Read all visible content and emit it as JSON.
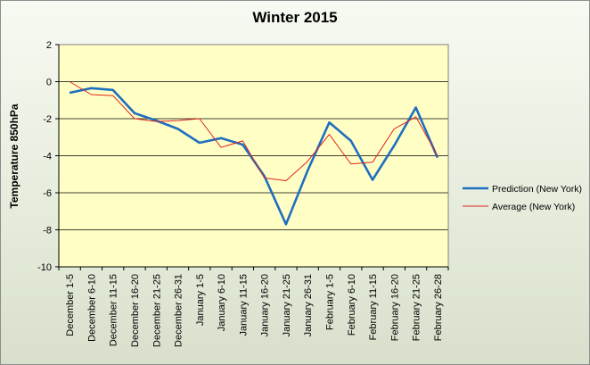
{
  "chart_data": {
    "type": "line",
    "title": "Winter 2015",
    "ylabel": "Temperature 850hPa",
    "xlabel": "",
    "ylim": [
      -10,
      2
    ],
    "yticks": [
      2,
      0,
      -2,
      -4,
      -6,
      -8,
      -10
    ],
    "grid": "horizontal",
    "legend": "right",
    "categories": [
      "December 1-5",
      "December 6-10",
      "December 11-15",
      "December 16-20",
      "December 21-25",
      "December 26-31",
      "January 1-5",
      "January 6-10",
      "January 11-15",
      "January 16-20",
      "January 21-25",
      "January 26-31",
      "February 1-5",
      "February 6-10",
      "February 11-15",
      "February 16-20",
      "February 21-25",
      "February 26-28"
    ],
    "series": [
      {
        "name": "Prediction (New York)",
        "color": "#1f6fbf",
        "values": [
          -0.6,
          -0.35,
          -0.45,
          -1.7,
          -2.1,
          -2.55,
          -3.3,
          -3.05,
          -3.4,
          -5.1,
          -7.7,
          -4.8,
          -2.2,
          -3.2,
          -5.3,
          -3.45,
          -1.4,
          -4.1
        ]
      },
      {
        "name": "Average (New York)",
        "color": "#e0231f",
        "values": [
          0.0,
          -0.7,
          -0.75,
          -2.0,
          -2.15,
          -2.1,
          -2.0,
          -3.55,
          -3.2,
          -5.2,
          -5.35,
          -4.3,
          -2.85,
          -4.45,
          -4.35,
          -2.55,
          -1.9,
          -4.0
        ]
      }
    ]
  }
}
